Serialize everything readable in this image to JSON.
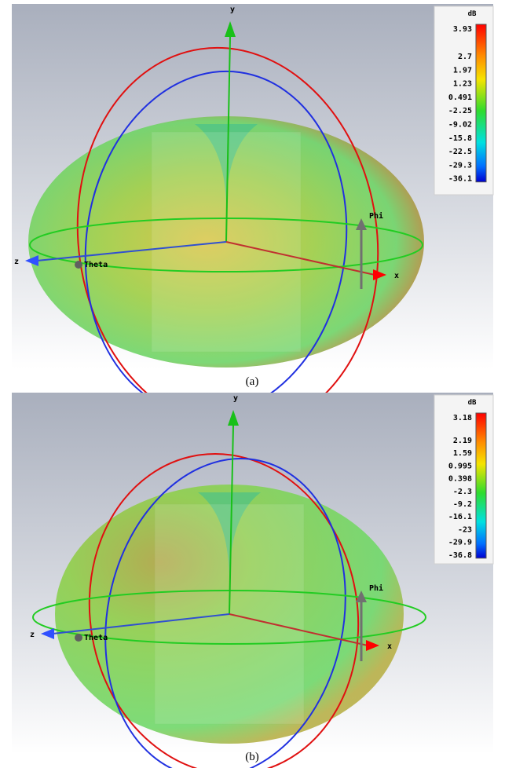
{
  "panels": [
    {
      "axes": {
        "y": "y",
        "x": "x",
        "z": "z",
        "theta": "Theta",
        "phi": "Phi"
      },
      "colorbar": {
        "unit": "dB",
        "labels": [
          3.93,
          2.7,
          1.97,
          1.23,
          0.491,
          -2.25,
          -9.02,
          -15.8,
          -22.5,
          -29.3,
          -36.1
        ]
      },
      "caption": "(a)"
    },
    {
      "axes": {
        "y": "y",
        "x": "x",
        "z": "z",
        "theta": "Theta",
        "phi": "Phi"
      },
      "colorbar": {
        "unit": "dB",
        "labels": [
          3.18,
          2.19,
          1.59,
          0.995,
          0.398,
          -2.3,
          -9.2,
          -16.1,
          -23,
          -29.9,
          -36.8
        ]
      },
      "caption": "(b)"
    }
  ]
}
